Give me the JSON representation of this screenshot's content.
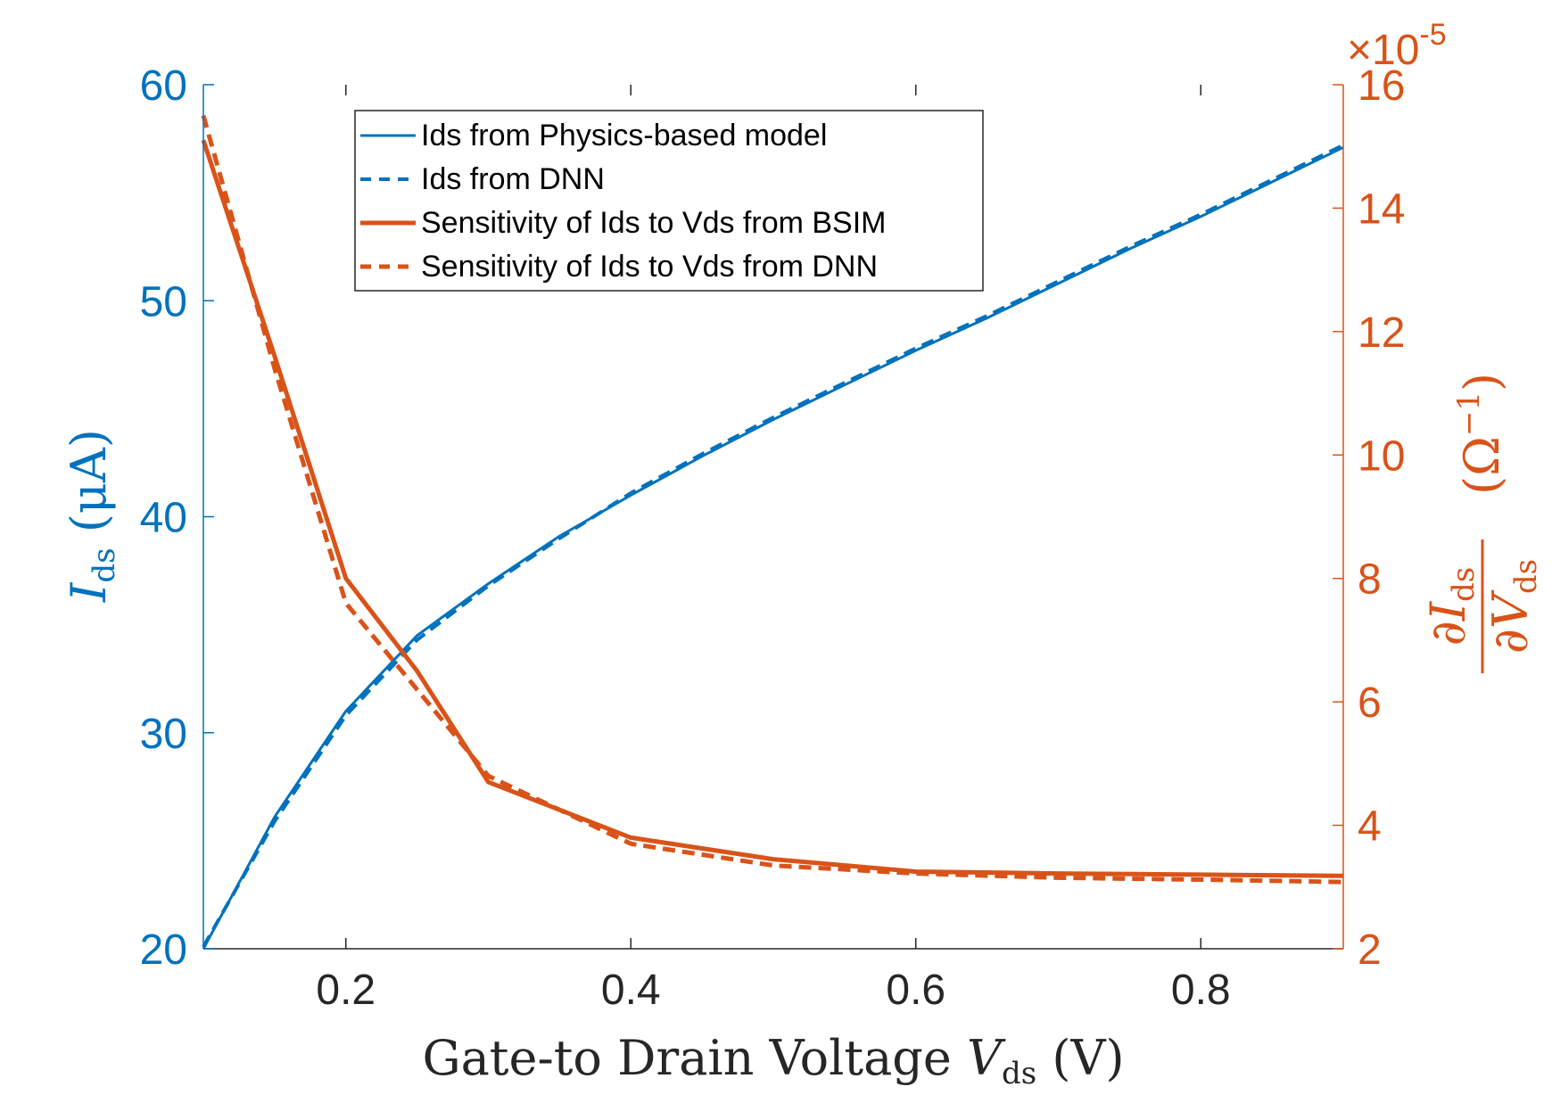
{
  "chart_data": {
    "type": "line",
    "xlabel": "Gate-to Drain Voltage V",
    "xlabel_parts": {
      "main": "Gate-to Drain Voltage ",
      "var": "V",
      "sub": "ds",
      "unit": " (V)"
    },
    "ylabel_left_parts": {
      "var": "I",
      "sub": "ds",
      "unit": " (μA)"
    },
    "ylabel_right_parts": {
      "num": "∂I",
      "num_sub": "ds",
      "den": "∂V",
      "den_sub": "ds",
      "unit": "(Ω",
      "unit_sup": "−1",
      "unit_close": ")"
    },
    "right_axis_exponent": {
      "base": "×10",
      "exp": "-5"
    },
    "xlim": [
      0.1,
      0.9
    ],
    "ylim_left": [
      20,
      60
    ],
    "ylim_right": [
      2,
      16
    ],
    "xticks": [
      0.2,
      0.4,
      0.6,
      0.8
    ],
    "yticks_left": [
      20,
      30,
      40,
      50,
      60
    ],
    "yticks_right": [
      2,
      4,
      6,
      8,
      10,
      12,
      14,
      16
    ],
    "colors": {
      "blue": "#0072BD",
      "orange": "#D95319",
      "axis": "#262626"
    },
    "series": [
      {
        "name": "Ids from Physics-based model",
        "axis": "left",
        "style": "solid",
        "color": "#0072BD",
        "x": [
          0.1,
          0.15,
          0.2,
          0.25,
          0.3,
          0.35,
          0.4,
          0.45,
          0.5,
          0.55,
          0.6,
          0.65,
          0.7,
          0.75,
          0.8,
          0.85,
          0.9
        ],
        "y": [
          20.0,
          26.1,
          31.0,
          34.5,
          36.9,
          39.1,
          41.0,
          42.8,
          44.5,
          46.1,
          47.7,
          49.2,
          50.8,
          52.4,
          53.9,
          55.5,
          57.1
        ]
      },
      {
        "name": "Ids from DNN",
        "axis": "left",
        "style": "dashed",
        "color": "#0072BD",
        "x": [
          0.1,
          0.15,
          0.2,
          0.25,
          0.3,
          0.35,
          0.4,
          0.45,
          0.5,
          0.55,
          0.6,
          0.65,
          0.7,
          0.75,
          0.8,
          0.85,
          0.9
        ],
        "y": [
          20.1,
          25.9,
          30.8,
          34.3,
          36.8,
          39.0,
          41.1,
          42.9,
          44.6,
          46.2,
          47.8,
          49.3,
          50.9,
          52.5,
          54.0,
          55.6,
          57.2
        ]
      },
      {
        "name": "Sensitivity of Ids to Vds from BSIM",
        "axis": "right",
        "style": "solid",
        "color": "#D95319",
        "x": [
          0.1,
          0.15,
          0.2,
          0.25,
          0.3,
          0.4,
          0.5,
          0.6,
          0.7,
          0.8,
          0.9
        ],
        "y": [
          15.1,
          11.6,
          8.0,
          6.5,
          4.7,
          3.8,
          3.45,
          3.25,
          3.22,
          3.2,
          3.18
        ]
      },
      {
        "name": "Sensitivity of Ids to Vds from DNN",
        "axis": "right",
        "style": "dashed",
        "color": "#D95319",
        "x": [
          0.1,
          0.15,
          0.2,
          0.25,
          0.3,
          0.4,
          0.5,
          0.6,
          0.7,
          0.8,
          0.9
        ],
        "y": [
          15.5,
          11.4,
          7.6,
          6.2,
          4.8,
          3.7,
          3.35,
          3.22,
          3.15,
          3.12,
          3.08
        ]
      }
    ]
  }
}
